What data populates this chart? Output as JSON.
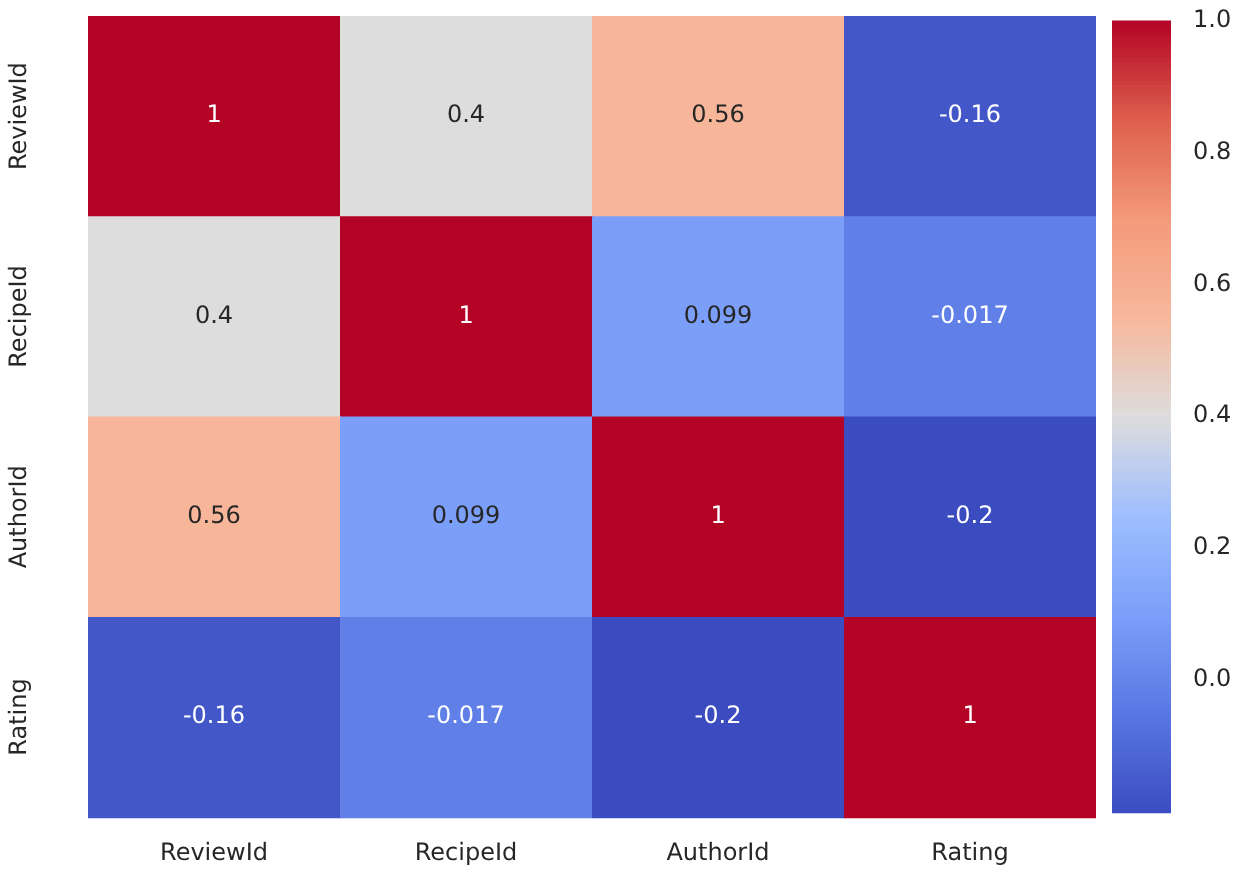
{
  "chart_data": {
    "type": "heatmap",
    "categories": [
      "ReviewId",
      "RecipeId",
      "AuthorId",
      "Rating"
    ],
    "y_categories": [
      "ReviewId",
      "RecipeId",
      "AuthorId",
      "Rating"
    ],
    "cells": [
      [
        1,
        0.4,
        0.56,
        -0.16
      ],
      [
        0.4,
        1,
        0.099,
        -0.017
      ],
      [
        0.56,
        0.099,
        1,
        -0.2
      ],
      [
        -0.16,
        -0.017,
        -0.2,
        1
      ]
    ],
    "data_labels": true,
    "clim": [
      -0.2,
      1.0
    ],
    "cticks": [
      {
        "value": 0,
        "label": "0.0"
      },
      {
        "value": 0.2,
        "label": "0.2"
      },
      {
        "value": 0.4,
        "label": "0.4"
      },
      {
        "value": 0.6,
        "label": "0.6"
      },
      {
        "value": 0.8,
        "label": "0.8"
      },
      {
        "value": 1,
        "label": "1.0"
      }
    ]
  }
}
